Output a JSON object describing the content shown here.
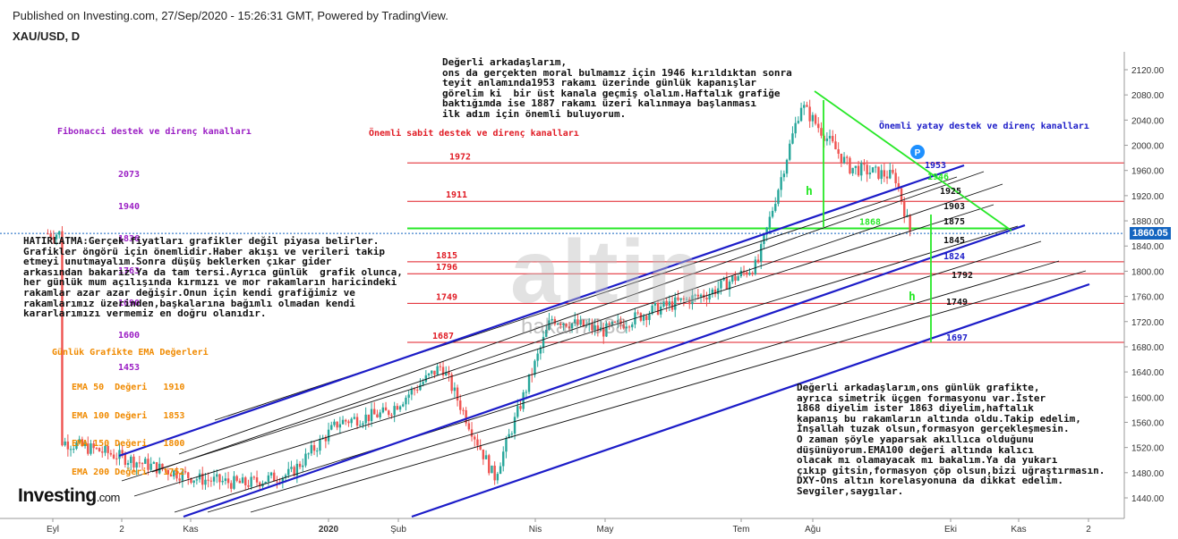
{
  "header": "Published on Investing.com, 27/Sep/2020 - 15:26:31 GMT, Powered by TradingView.",
  "symbol": "XAU/USD, D",
  "logo": {
    "main": "Investing",
    "suffix": ".com"
  },
  "watermark": {
    "main": "altin",
    "sub": "hakan7038"
  },
  "current_price": "1860.05",
  "labels": {
    "fib_title": "Fibonacci destek ve direnç kanalları",
    "fixed_title": "Önemli sabit destek ve direnç kanalları",
    "horiz_title": "Önemli yatay destek ve direnç kanalları",
    "ema_title": "Günlük Grafikte EMA Değerleri",
    "h_marker": "h",
    "p_marker": "P"
  },
  "fib_levels": [
    "2073",
    "1940",
    "1836",
    "1763",
    "1690",
    "1600",
    "1453"
  ],
  "ema_values": [
    "EMA 50  Değeri   1910",
    "EMA 100 Değeri   1853",
    "EMA 150 Değeri   1800",
    "EMA 200 Değeri   1752"
  ],
  "notes": {
    "top": "Değerli arkadaşlarım,\nons da gerçekten moral bulmamız için 1946 kırıldıktan sonra\nteyit anlamında1953 rakamı üzerinde günlük kapanışlar\ngörelim ki  bir üst kanala geçmiş olalım.Haftalık grafiğe\nbaktığımda ise 1887 rakamı üzeri kalınmaya başlanması\nilk adım için önemli buluyorum.",
    "left": "HATIRLATMA:Gerçek fiyatları grafikler değil piyasa belirler.\nGrafikler öngörü için önemlidir.Haber akışı ve verileri takip\netmeyi unutmayalım.Sonra düşüş beklerken çıkar gider\narkasından bakarız.Ya da tam tersi.Ayrıca günlük  grafik olunca,\nher günlük mum açılışında kırmızı ve mor rakamların haricindeki\nrakamlar azar azar değişir.Onun için kendi grafiğimiz ve\nrakamlarımız üzerinden,başkalarına bağımlı olmadan kendi\nkararlarımızı vermemiz en doğru olanıdır.",
    "bottom": "Değerli arkadaşlarım,ons günlük grafikte,\nayrıca simetrik üçgen formasyonu var.İster\n1868 diyelim ister 1863 diyelim,haftalık\nkapanış bu rakamların altında oldu.Takip edelim,\nİnşallah tuzak olsun,formasyon gerçekleşmesin.\nO zaman şöyle yaparsak akıllıca olduğunu\ndüşünüyorum.EMA100 değeri altında kalıcı\nolacak mı olamayacak mı bakalım.Ya da yukarı\nçıkıp gitsin,formasyon çöp olsun,bizi uğraştırmasın.\nDXY-Ons altın korelasyonuna da dikkat edelim.\nSevgiler,saygılar."
  },
  "red_levels": [
    {
      "value": 1972,
      "label": "1972"
    },
    {
      "value": 1911,
      "label": "1911"
    },
    {
      "value": 1815,
      "label": "1815"
    },
    {
      "value": 1796,
      "label": "1796"
    },
    {
      "value": 1749,
      "label": "1749"
    },
    {
      "value": 1687,
      "label": "1687"
    }
  ],
  "green_level": {
    "value": 1868,
    "label": "1868"
  },
  "channel_labels": [
    {
      "value": 1953,
      "label": "1953",
      "color": "blue"
    },
    {
      "value": 1946,
      "label": "1946",
      "color": "green"
    },
    {
      "value": 1925,
      "label": "1925",
      "color": "black"
    },
    {
      "value": 1903,
      "label": "1903",
      "color": "black"
    },
    {
      "value": 1875,
      "label": "1875",
      "color": "black"
    },
    {
      "value": 1845,
      "label": "1845",
      "color": "black"
    },
    {
      "value": 1824,
      "label": "1824",
      "color": "blue"
    },
    {
      "value": 1792,
      "label": "1792",
      "color": "black"
    },
    {
      "value": 1749,
      "label": "1749",
      "color": "black"
    },
    {
      "value": 1697,
      "label": "1697",
      "color": "blue"
    }
  ],
  "colors": {
    "red": "#e01b24",
    "blue": "#1c1cc8",
    "green": "#27e827",
    "black": "#111111",
    "up": "#26a69a",
    "down": "#ef5350",
    "price_tag": "#1565c0"
  },
  "chart_data": {
    "type": "candlestick",
    "title": "",
    "ylim": [
      1430,
      2140
    ],
    "y_ticks": [
      1440,
      1480,
      1520,
      1560,
      1600,
      1640,
      1680,
      1720,
      1760,
      1800,
      1840,
      1880,
      1920,
      1960,
      2000,
      2040,
      2080,
      2120
    ],
    "x_ticks": [
      "Eyl",
      "2",
      "Kas",
      "2020",
      "Şub",
      "Nis",
      "May",
      "Tem",
      "Ağu",
      "Eki",
      "Kas",
      "2"
    ],
    "grid": false,
    "approx_closes": [
      {
        "date": "2019-09-03",
        "close": 1530
      },
      {
        "date": "2019-09-24",
        "close": 1512
      },
      {
        "date": "2019-10-15",
        "close": 1490
      },
      {
        "date": "2019-11-05",
        "close": 1470
      },
      {
        "date": "2019-11-26",
        "close": 1462
      },
      {
        "date": "2019-12-17",
        "close": 1478
      },
      {
        "date": "2020-01-08",
        "close": 1560
      },
      {
        "date": "2020-01-30",
        "close": 1575
      },
      {
        "date": "2020-02-24",
        "close": 1650
      },
      {
        "date": "2020-03-19",
        "close": 1472
      },
      {
        "date": "2020-04-14",
        "close": 1725
      },
      {
        "date": "2020-05-08",
        "close": 1705
      },
      {
        "date": "2020-06-01",
        "close": 1740
      },
      {
        "date": "2020-06-25",
        "close": 1765
      },
      {
        "date": "2020-07-17",
        "close": 1810
      },
      {
        "date": "2020-08-06",
        "close": 2065
      },
      {
        "date": "2020-08-28",
        "close": 1965
      },
      {
        "date": "2020-09-18",
        "close": 1950
      },
      {
        "date": "2020-09-25",
        "close": 1860
      }
    ]
  }
}
